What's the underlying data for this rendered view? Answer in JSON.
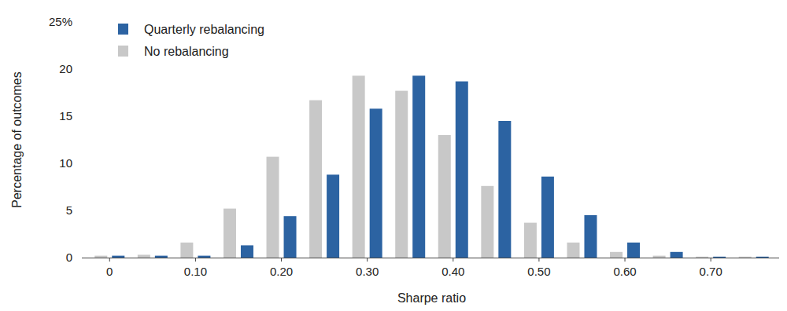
{
  "chart_data": {
    "type": "bar",
    "x_label": "Sharpe ratio",
    "y_label": "Percentage of outcomes",
    "categories": [
      "0",
      null,
      "0.10",
      null,
      "0.20",
      null,
      "0.30",
      null,
      "0.40",
      null,
      "0.50",
      null,
      "0.60",
      null,
      "0.70",
      null
    ],
    "series": [
      {
        "name": "No rebalancing",
        "color": "#c8c8c8",
        "values": [
          0.2,
          0.3,
          1.6,
          5.2,
          10.7,
          16.7,
          19.3,
          17.7,
          13.0,
          7.6,
          3.7,
          1.6,
          0.6,
          0.2,
          0.1,
          0.1
        ]
      },
      {
        "name": "Quarterly rebalancing",
        "color": "#2c63a2",
        "values": [
          0.2,
          0.2,
          0.2,
          1.3,
          4.4,
          8.8,
          15.8,
          19.3,
          18.7,
          14.5,
          8.6,
          4.5,
          1.6,
          0.6,
          0.1,
          0.1
        ]
      }
    ],
    "ylim": [
      0,
      25
    ],
    "yticks": [
      0,
      5,
      10,
      15,
      20,
      {
        "value": 25,
        "label": "25%"
      }
    ],
    "grid": false,
    "legend": "top-left"
  }
}
